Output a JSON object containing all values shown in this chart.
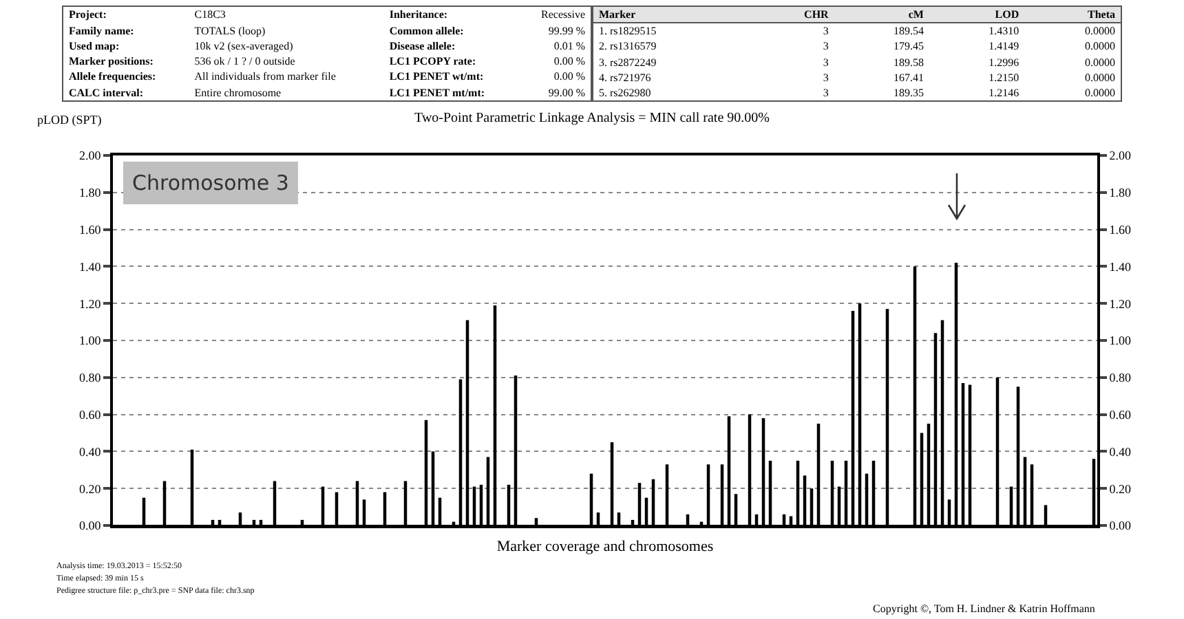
{
  "chart_data": [
    {
      "type": "other",
      "annotations": [
        "Project:",
        "C18C3",
        "Inheritance:",
        "Recessive",
        "Family name:",
        "TOTALS (loop)",
        "Common allele:",
        "99.99 %",
        "Used map:",
        "10k v2 (sex-averaged)",
        "Disease allele:",
        "0.01 %",
        "Marker positions:",
        "536 ok / 1 ? / 0 outside",
        "LC1 PCOPY rate:",
        "0.00 %",
        "Allele frequencies:",
        "All individuals from marker file",
        "LC1 PENET wt/mt:",
        "0.00 %",
        "CALC interval:",
        "Entire chromosome",
        "LC1 PENET mt/mt:",
        "99.00 %",
        "Marker",
        "CHR",
        "cM",
        "LOD",
        "Theta",
        "1. rs1829515",
        "3",
        "189.54",
        "1.4310",
        "0.0000",
        "2. rs1316579",
        "3",
        "179.45",
        "1.4149",
        "0.0000",
        "3. rs2872249",
        "3",
        "189.58",
        "1.2996",
        "0.0000",
        "4. rs721976",
        "3",
        "167.41",
        "1.2150",
        "0.0000",
        "5. rs262980",
        "3",
        "189.35",
        "1.2146",
        "0.0000"
      ]
    },
    {
      "type": "bar",
      "title": "Two-Point Parametric Linkage Analysis = MIN call rate 90.00%",
      "ylabel": "pLOD (SPT)",
      "xlabel": "Marker coverage and chromosomes",
      "color": "#000000",
      "grid": "y",
      "annotations": [
        "Chromosome 3",
        "Analysis time: 19.03.2013 = 15:52:50",
        "Time elapsed: 39 min 15 s",
        "Pedigree structure file: p_chr3.pre = SNP data file: chr3.snp",
        "Copyright ©, Tom H. Lindner & Katrin Hoffmann"
      ],
      "ylim": [
        0,
        2
      ],
      "yticks": [
        {
          "value": 0,
          "label": "0.00"
        },
        {
          "value": 0.2,
          "label": "0.20"
        },
        {
          "value": 0.4,
          "label": "0.40"
        },
        {
          "value": 0.6,
          "label": "0.60"
        },
        {
          "value": 0.8,
          "label": "0.80"
        },
        {
          "value": 1,
          "label": "1.00"
        },
        {
          "value": 1.2,
          "label": "1.20"
        },
        {
          "value": 1.4,
          "label": "1.40"
        },
        {
          "value": 1.6,
          "label": "1.60"
        },
        {
          "value": 1.8,
          "label": "1.80"
        },
        {
          "value": 2,
          "label": "2.00"
        }
      ],
      "y2lim": [
        0,
        2
      ],
      "y2ticks": [
        {
          "value": 0,
          "label": "0.00"
        },
        {
          "value": 0.2,
          "label": "0.20"
        },
        {
          "value": 0.4,
          "label": "0.40"
        },
        {
          "value": 0.6,
          "label": "0.60"
        },
        {
          "value": 0.8,
          "label": "0.80"
        },
        {
          "value": 1,
          "label": "1.00"
        },
        {
          "value": 1.2,
          "label": "1.20"
        },
        {
          "value": 1.4,
          "label": "1.40"
        },
        {
          "value": 1.6,
          "label": "1.60"
        },
        {
          "value": 1.8,
          "label": "1.80"
        },
        {
          "value": 2,
          "label": "2.00"
        }
      ],
      "categories": [
        null,
        null,
        null,
        null,
        null,
        null,
        null,
        null,
        null,
        null,
        null,
        null,
        null,
        null,
        null,
        null,
        null,
        null,
        null,
        null,
        null,
        null,
        null,
        null,
        null,
        null,
        null,
        null,
        null,
        null,
        null,
        null,
        null,
        null,
        null,
        null,
        null,
        null,
        null,
        null,
        null,
        null,
        null,
        null,
        null,
        null,
        null,
        null,
        null,
        null,
        null,
        null,
        null,
        null,
        null,
        null,
        null,
        null,
        null,
        null,
        null,
        null,
        null,
        null,
        null,
        null,
        null,
        null,
        null,
        null,
        null,
        null,
        null,
        null,
        null,
        null,
        null,
        null,
        null,
        null,
        null,
        null,
        null,
        null,
        null,
        null,
        null,
        null,
        null,
        null,
        null,
        null,
        null,
        null,
        null,
        null,
        null,
        null,
        null,
        null,
        null,
        null,
        null,
        null,
        null,
        null,
        null,
        null,
        null,
        null,
        null,
        null,
        null,
        null,
        null,
        null,
        null,
        null,
        null,
        null,
        null,
        null,
        null,
        null,
        null,
        null,
        null,
        null,
        null,
        null,
        null,
        null,
        null,
        null,
        null,
        null,
        null,
        null,
        null,
        null,
        null,
        null,
        null
      ],
      "values": [
        null,
        null,
        null,
        null,
        0.15,
        null,
        null,
        0.24,
        null,
        null,
        null,
        0.41,
        null,
        null,
        0.03,
        0.03,
        null,
        null,
        0.07,
        null,
        0.03,
        0.03,
        null,
        0.24,
        null,
        null,
        null,
        0.03,
        null,
        null,
        0.21,
        null,
        0.18,
        null,
        null,
        0.24,
        0.14,
        null,
        null,
        0.18,
        null,
        null,
        0.24,
        null,
        null,
        0.57,
        0.4,
        0.15,
        null,
        0.02,
        0.79,
        1.11,
        0.21,
        0.22,
        0.37,
        1.19,
        null,
        0.22,
        0.81,
        null,
        null,
        0.04,
        null,
        null,
        null,
        null,
        null,
        null,
        null,
        0.28,
        0.07,
        null,
        0.45,
        0.07,
        null,
        0.03,
        0.23,
        0.15,
        0.25,
        null,
        0.33,
        null,
        null,
        0.06,
        null,
        0.02,
        0.33,
        null,
        0.33,
        0.59,
        0.17,
        null,
        0.6,
        0.06,
        0.58,
        0.35,
        null,
        0.06,
        0.05,
        0.35,
        0.27,
        0.2,
        0.55,
        null,
        0.35,
        0.21,
        0.35,
        1.16,
        1.2,
        0.28,
        0.35,
        null,
        1.17,
        null,
        null,
        null,
        1.4,
        0.5,
        0.55,
        1.04,
        1.11,
        0.14,
        1.42,
        0.77,
        0.76,
        null,
        null,
        null,
        0.8,
        null,
        0.21,
        0.75,
        0.37,
        0.33,
        null,
        0.11,
        null,
        null,
        null,
        null,
        null,
        null,
        0.36
      ]
    }
  ]
}
